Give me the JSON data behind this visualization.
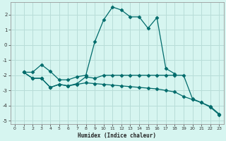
{
  "xlabel": "Humidex (Indice chaleur)",
  "bg_color": "#d6f5f0",
  "grid_color": "#b8ddd8",
  "line_color": "#006b6b",
  "xlim": [
    -0.5,
    23.5
  ],
  "ylim": [
    -5.2,
    2.8
  ],
  "yticks": [
    -5,
    -4,
    -3,
    -2,
    -1,
    0,
    1,
    2
  ],
  "xticks": [
    0,
    1,
    2,
    3,
    4,
    5,
    6,
    7,
    8,
    9,
    10,
    11,
    12,
    13,
    14,
    15,
    16,
    17,
    18,
    19,
    20,
    21,
    22,
    23
  ],
  "line1_x": [
    1,
    2,
    3,
    4,
    5,
    6,
    7,
    8,
    9,
    10,
    11,
    12,
    13,
    14,
    15,
    16,
    17,
    18
  ],
  "line1_y": [
    -1.8,
    -1.8,
    -1.3,
    -1.75,
    -2.3,
    -2.3,
    -2.1,
    -2.0,
    0.2,
    1.65,
    2.5,
    2.3,
    1.85,
    1.85,
    1.1,
    1.8,
    -1.55,
    -1.9
  ],
  "line2_x": [
    1,
    2,
    3,
    4,
    5,
    6,
    7,
    8,
    9,
    10,
    11,
    12,
    13,
    14,
    15,
    16,
    17,
    18,
    19,
    20,
    21,
    22,
    23
  ],
  "line2_y": [
    -1.8,
    -2.2,
    -2.2,
    -2.8,
    -2.6,
    -2.7,
    -2.55,
    -2.1,
    -2.2,
    -2.0,
    -2.0,
    -2.0,
    -2.0,
    -2.0,
    -2.0,
    -2.0,
    -2.0,
    -2.0,
    -2.0,
    -3.55,
    -3.8,
    -4.1,
    -4.6
  ],
  "line3_x": [
    1,
    2,
    3,
    4,
    5,
    6,
    7,
    8,
    9,
    10,
    11,
    12,
    13,
    14,
    15,
    16,
    17,
    18,
    19,
    20,
    21,
    22,
    23
  ],
  "line3_y": [
    -1.8,
    -2.2,
    -2.2,
    -2.8,
    -2.6,
    -2.7,
    -2.6,
    -2.5,
    -2.55,
    -2.6,
    -2.65,
    -2.7,
    -2.75,
    -2.8,
    -2.85,
    -2.9,
    -3.0,
    -3.1,
    -3.4,
    -3.6,
    -3.8,
    -4.05,
    -4.55
  ]
}
